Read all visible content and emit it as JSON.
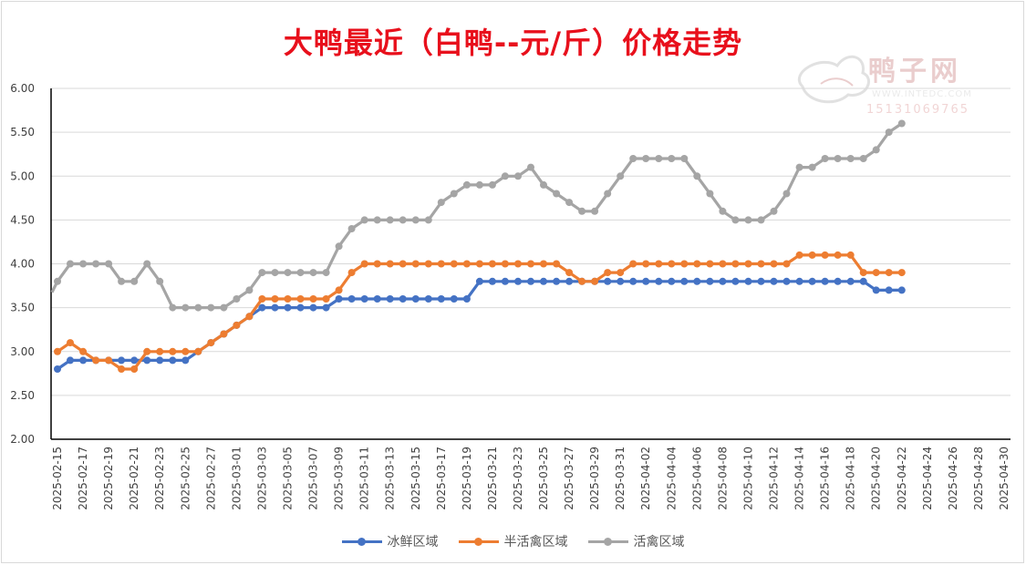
{
  "chart_data": {
    "type": "line",
    "title": "大鸭最近（白鸭--元/斤）价格走势",
    "xlabel": "",
    "ylabel": "",
    "ylim": [
      2.0,
      6.0
    ],
    "yticks": [
      "2.00",
      "2.50",
      "3.00",
      "3.50",
      "4.00",
      "4.50",
      "5.00",
      "5.50",
      "6.00"
    ],
    "grid": true,
    "legend_position": "bottom",
    "x_start": "2025-02-15",
    "x_end": "2025-04-30",
    "x_tick_labels": [
      "2025-02-15",
      "2025-02-17",
      "2025-02-19",
      "2025-02-21",
      "2025-02-23",
      "2025-02-25",
      "2025-02-27",
      "2025-03-01",
      "2025-03-03",
      "2025-03-05",
      "2025-03-07",
      "2025-03-09",
      "2025-03-11",
      "2025-03-13",
      "2025-03-15",
      "2025-03-17",
      "2025-03-19",
      "2025-03-21",
      "2025-03-23",
      "2025-03-25",
      "2025-03-27",
      "2025-03-29",
      "2025-03-31",
      "2025-04-02",
      "2025-04-04",
      "2025-04-06",
      "2025-04-08",
      "2025-04-10",
      "2025-04-12",
      "2025-04-14",
      "2025-04-16",
      "2025-04-18",
      "2025-04-20",
      "2025-04-22",
      "2025-04-24",
      "2025-04-26",
      "2025-04-28",
      "2025-04-30"
    ],
    "series": [
      {
        "name": "冰鲜区域",
        "color": "#4472c4",
        "points": [
          [
            "2025-02-15",
            2.8
          ],
          [
            "2025-02-16",
            2.9
          ],
          [
            "2025-02-17",
            2.9
          ],
          [
            "2025-02-18",
            2.9
          ],
          [
            "2025-02-19",
            2.9
          ],
          [
            "2025-02-20",
            2.9
          ],
          [
            "2025-02-21",
            2.9
          ],
          [
            "2025-02-22",
            2.9
          ],
          [
            "2025-02-23",
            2.9
          ],
          [
            "2025-02-24",
            2.9
          ],
          [
            "2025-02-25",
            2.9
          ],
          [
            "2025-02-26",
            3.0
          ],
          [
            "2025-02-27",
            3.1
          ],
          [
            "2025-02-28",
            3.2
          ],
          [
            "2025-03-01",
            3.3
          ],
          [
            "2025-03-02",
            3.4
          ],
          [
            "2025-03-03",
            3.5
          ],
          [
            "2025-03-04",
            3.5
          ],
          [
            "2025-03-05",
            3.5
          ],
          [
            "2025-03-06",
            3.5
          ],
          [
            "2025-03-07",
            3.5
          ],
          [
            "2025-03-08",
            3.5
          ],
          [
            "2025-03-09",
            3.6
          ],
          [
            "2025-03-10",
            3.6
          ],
          [
            "2025-03-11",
            3.6
          ],
          [
            "2025-03-12",
            3.6
          ],
          [
            "2025-03-13",
            3.6
          ],
          [
            "2025-03-14",
            3.6
          ],
          [
            "2025-03-15",
            3.6
          ],
          [
            "2025-03-16",
            3.6
          ],
          [
            "2025-03-17",
            3.6
          ],
          [
            "2025-03-18",
            3.6
          ],
          [
            "2025-03-19",
            3.6
          ],
          [
            "2025-03-20",
            3.8
          ],
          [
            "2025-03-21",
            3.8
          ],
          [
            "2025-03-22",
            3.8
          ],
          [
            "2025-03-23",
            3.8
          ],
          [
            "2025-03-24",
            3.8
          ],
          [
            "2025-03-25",
            3.8
          ],
          [
            "2025-03-26",
            3.8
          ],
          [
            "2025-03-27",
            3.8
          ],
          [
            "2025-03-28",
            3.8
          ],
          [
            "2025-03-29",
            3.8
          ],
          [
            "2025-03-30",
            3.8
          ],
          [
            "2025-03-31",
            3.8
          ],
          [
            "2025-04-01",
            3.8
          ],
          [
            "2025-04-02",
            3.8
          ],
          [
            "2025-04-03",
            3.8
          ],
          [
            "2025-04-04",
            3.8
          ],
          [
            "2025-04-05",
            3.8
          ],
          [
            "2025-04-06",
            3.8
          ],
          [
            "2025-04-07",
            3.8
          ],
          [
            "2025-04-08",
            3.8
          ],
          [
            "2025-04-09",
            3.8
          ],
          [
            "2025-04-10",
            3.8
          ],
          [
            "2025-04-11",
            3.8
          ],
          [
            "2025-04-12",
            3.8
          ],
          [
            "2025-04-13",
            3.8
          ],
          [
            "2025-04-14",
            3.8
          ],
          [
            "2025-04-15",
            3.8
          ],
          [
            "2025-04-16",
            3.8
          ],
          [
            "2025-04-17",
            3.8
          ],
          [
            "2025-04-18",
            3.8
          ],
          [
            "2025-04-19",
            3.8
          ],
          [
            "2025-04-20",
            3.7
          ],
          [
            "2025-04-21",
            3.7
          ],
          [
            "2025-04-22",
            3.7
          ]
        ]
      },
      {
        "name": "半活禽区域",
        "color": "#ed7d31",
        "points": [
          [
            "2025-02-15",
            3.0
          ],
          [
            "2025-02-16",
            3.1
          ],
          [
            "2025-02-17",
            3.0
          ],
          [
            "2025-02-18",
            2.9
          ],
          [
            "2025-02-19",
            2.9
          ],
          [
            "2025-02-20",
            2.8
          ],
          [
            "2025-02-21",
            2.8
          ],
          [
            "2025-02-22",
            3.0
          ],
          [
            "2025-02-23",
            3.0
          ],
          [
            "2025-02-24",
            3.0
          ],
          [
            "2025-02-25",
            3.0
          ],
          [
            "2025-02-26",
            3.0
          ],
          [
            "2025-02-27",
            3.1
          ],
          [
            "2025-02-28",
            3.2
          ],
          [
            "2025-03-01",
            3.3
          ],
          [
            "2025-03-02",
            3.4
          ],
          [
            "2025-03-03",
            3.6
          ],
          [
            "2025-03-04",
            3.6
          ],
          [
            "2025-03-05",
            3.6
          ],
          [
            "2025-03-06",
            3.6
          ],
          [
            "2025-03-07",
            3.6
          ],
          [
            "2025-03-08",
            3.6
          ],
          [
            "2025-03-09",
            3.7
          ],
          [
            "2025-03-10",
            3.9
          ],
          [
            "2025-03-11",
            4.0
          ],
          [
            "2025-03-12",
            4.0
          ],
          [
            "2025-03-13",
            4.0
          ],
          [
            "2025-03-14",
            4.0
          ],
          [
            "2025-03-15",
            4.0
          ],
          [
            "2025-03-16",
            4.0
          ],
          [
            "2025-03-17",
            4.0
          ],
          [
            "2025-03-18",
            4.0
          ],
          [
            "2025-03-19",
            4.0
          ],
          [
            "2025-03-20",
            4.0
          ],
          [
            "2025-03-21",
            4.0
          ],
          [
            "2025-03-22",
            4.0
          ],
          [
            "2025-03-23",
            4.0
          ],
          [
            "2025-03-24",
            4.0
          ],
          [
            "2025-03-25",
            4.0
          ],
          [
            "2025-03-26",
            4.0
          ],
          [
            "2025-03-27",
            3.9
          ],
          [
            "2025-03-28",
            3.8
          ],
          [
            "2025-03-29",
            3.8
          ],
          [
            "2025-03-30",
            3.9
          ],
          [
            "2025-03-31",
            3.9
          ],
          [
            "2025-04-01",
            4.0
          ],
          [
            "2025-04-02",
            4.0
          ],
          [
            "2025-04-03",
            4.0
          ],
          [
            "2025-04-04",
            4.0
          ],
          [
            "2025-04-05",
            4.0
          ],
          [
            "2025-04-06",
            4.0
          ],
          [
            "2025-04-07",
            4.0
          ],
          [
            "2025-04-08",
            4.0
          ],
          [
            "2025-04-09",
            4.0
          ],
          [
            "2025-04-10",
            4.0
          ],
          [
            "2025-04-11",
            4.0
          ],
          [
            "2025-04-12",
            4.0
          ],
          [
            "2025-04-13",
            4.0
          ],
          [
            "2025-04-14",
            4.1
          ],
          [
            "2025-04-15",
            4.1
          ],
          [
            "2025-04-16",
            4.1
          ],
          [
            "2025-04-17",
            4.1
          ],
          [
            "2025-04-18",
            4.1
          ],
          [
            "2025-04-19",
            3.9
          ],
          [
            "2025-04-20",
            3.9
          ],
          [
            "2025-04-21",
            3.9
          ],
          [
            "2025-04-22",
            3.9
          ]
        ]
      },
      {
        "name": "活禽区域",
        "color": "#a5a5a5",
        "points": [
          [
            "2025-02-15",
            3.8
          ],
          [
            "2025-02-16",
            4.0
          ],
          [
            "2025-02-17",
            4.0
          ],
          [
            "2025-02-18",
            4.0
          ],
          [
            "2025-02-19",
            4.0
          ],
          [
            "2025-02-20",
            3.8
          ],
          [
            "2025-02-21",
            3.8
          ],
          [
            "2025-02-22",
            4.0
          ],
          [
            "2025-02-23",
            3.8
          ],
          [
            "2025-02-24",
            3.5
          ],
          [
            "2025-02-25",
            3.5
          ],
          [
            "2025-02-26",
            3.5
          ],
          [
            "2025-02-27",
            3.5
          ],
          [
            "2025-02-28",
            3.5
          ],
          [
            "2025-03-01",
            3.6
          ],
          [
            "2025-03-02",
            3.7
          ],
          [
            "2025-03-03",
            3.9
          ],
          [
            "2025-03-04",
            3.9
          ],
          [
            "2025-03-05",
            3.9
          ],
          [
            "2025-03-06",
            3.9
          ],
          [
            "2025-03-07",
            3.9
          ],
          [
            "2025-03-08",
            3.9
          ],
          [
            "2025-03-09",
            4.2
          ],
          [
            "2025-03-10",
            4.4
          ],
          [
            "2025-03-11",
            4.5
          ],
          [
            "2025-03-12",
            4.5
          ],
          [
            "2025-03-13",
            4.5
          ],
          [
            "2025-03-14",
            4.5
          ],
          [
            "2025-03-15",
            4.5
          ],
          [
            "2025-03-16",
            4.5
          ],
          [
            "2025-03-17",
            4.7
          ],
          [
            "2025-03-18",
            4.8
          ],
          [
            "2025-03-19",
            4.9
          ],
          [
            "2025-03-20",
            4.9
          ],
          [
            "2025-03-21",
            4.9
          ],
          [
            "2025-03-22",
            5.0
          ],
          [
            "2025-03-23",
            5.0
          ],
          [
            "2025-03-24",
            5.1
          ],
          [
            "2025-03-25",
            4.9
          ],
          [
            "2025-03-26",
            4.8
          ],
          [
            "2025-03-27",
            4.7
          ],
          [
            "2025-03-28",
            4.6
          ],
          [
            "2025-03-29",
            4.6
          ],
          [
            "2025-03-30",
            4.8
          ],
          [
            "2025-03-31",
            5.0
          ],
          [
            "2025-04-01",
            5.2
          ],
          [
            "2025-04-02",
            5.2
          ],
          [
            "2025-04-03",
            5.2
          ],
          [
            "2025-04-04",
            5.2
          ],
          [
            "2025-04-05",
            5.2
          ],
          [
            "2025-04-06",
            5.0
          ],
          [
            "2025-04-07",
            4.8
          ],
          [
            "2025-04-08",
            4.6
          ],
          [
            "2025-04-09",
            4.5
          ],
          [
            "2025-04-10",
            4.5
          ],
          [
            "2025-04-11",
            4.5
          ],
          [
            "2025-04-12",
            4.6
          ],
          [
            "2025-04-13",
            4.8
          ],
          [
            "2025-04-14",
            5.1
          ],
          [
            "2025-04-15",
            5.1
          ],
          [
            "2025-04-16",
            5.2
          ],
          [
            "2025-04-17",
            5.2
          ],
          [
            "2025-04-18",
            5.2
          ],
          [
            "2025-04-19",
            5.2
          ],
          [
            "2025-04-20",
            5.3
          ],
          [
            "2025-04-21",
            5.5
          ],
          [
            "2025-04-22",
            5.6
          ]
        ]
      }
    ]
  },
  "watermark": {
    "brand": "鸭子网",
    "site": "WWW.INTEDC.COM",
    "phone": "15131069765",
    "color": "#d9a6a6"
  }
}
